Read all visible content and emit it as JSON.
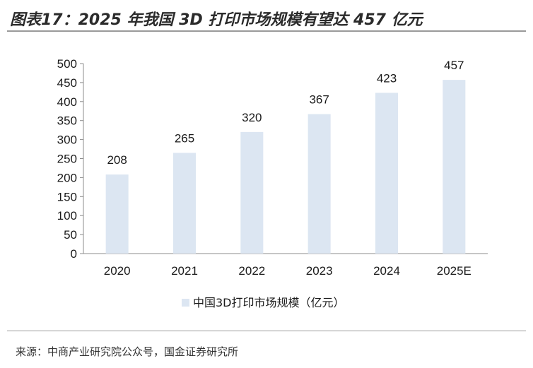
{
  "page": {
    "title": "图表17：2025 年我国 3D 打印市场规模有望达 457 亿元",
    "source": "来源：中商产业研究院公众号，国金证券研究所"
  },
  "colors": {
    "bar": "#dce6f2",
    "axis": "#8c8c8c",
    "text": "#1a1a1a"
  },
  "chart_data": {
    "type": "bar",
    "title": "图表17：2025 年我国 3D 打印市场规模有望达 457 亿元",
    "categories": [
      "2020",
      "2021",
      "2022",
      "2023",
      "2024",
      "2025E"
    ],
    "series": [
      {
        "name": "中国3D打印市场规模（亿元）",
        "values": [
          208,
          265,
          320,
          367,
          423,
          457
        ]
      }
    ],
    "xlabel": "",
    "ylabel": "",
    "ylim": [
      0,
      500
    ],
    "yticks": [
      "0",
      "50",
      "100",
      "150",
      "200",
      "250",
      "300",
      "350",
      "400",
      "450",
      "500"
    ],
    "data_labels": [
      "208",
      "265",
      "320",
      "367",
      "423",
      "457"
    ],
    "grid": false,
    "legend": "bottom-center"
  }
}
